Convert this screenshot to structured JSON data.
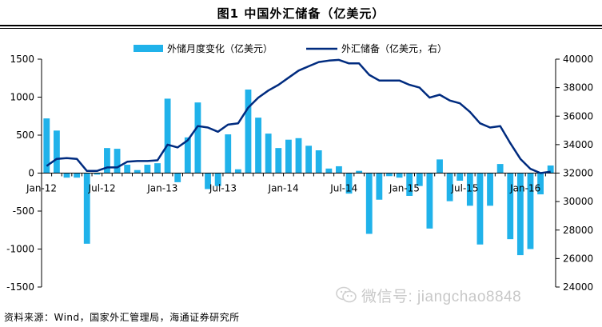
{
  "figure": {
    "title": "图1   中国外汇储备（亿美元）",
    "source": "资料来源：Wind，国家外汇管理局，海通证券研究所",
    "watermark": "微信号: jiangchao8848"
  },
  "chart_data": {
    "type": "bar+line",
    "categories": [
      "Jan-12",
      "Feb-12",
      "Mar-12",
      "Apr-12",
      "May-12",
      "Jun-12",
      "Jul-12",
      "Aug-12",
      "Sep-12",
      "Oct-12",
      "Nov-12",
      "Dec-12",
      "Jan-13",
      "Feb-13",
      "Mar-13",
      "Apr-13",
      "May-13",
      "Jun-13",
      "Jul-13",
      "Aug-13",
      "Sep-13",
      "Oct-13",
      "Nov-13",
      "Dec-13",
      "Jan-14",
      "Feb-14",
      "Mar-14",
      "Apr-14",
      "May-14",
      "Jun-14",
      "Jul-14",
      "Aug-14",
      "Sep-14",
      "Oct-14",
      "Nov-14",
      "Dec-14",
      "Jan-15",
      "Feb-15",
      "Mar-15",
      "Apr-15",
      "May-15",
      "Jun-15",
      "Jul-15",
      "Aug-15",
      "Sep-15",
      "Oct-15",
      "Nov-15",
      "Dec-15",
      "Jan-16",
      "Feb-16",
      "Mar-16"
    ],
    "x_tick_labels": [
      "Jan-12",
      "Jul-12",
      "Jan-13",
      "Jul-13",
      "Jan-14",
      "Jul-14",
      "Jan-15",
      "Jul-15",
      "Jan-16"
    ],
    "series": [
      {
        "name": "外储月度变化（亿美元）",
        "kind": "bar",
        "axis": "left",
        "color": "#20b2ea",
        "values": [
          720,
          560,
          -60,
          -60,
          -930,
          -20,
          330,
          320,
          110,
          40,
          110,
          130,
          980,
          -120,
          470,
          930,
          -210,
          -170,
          510,
          50,
          1100,
          730,
          520,
          330,
          440,
          460,
          360,
          300,
          60,
          90,
          -270,
          30,
          -800,
          -350,
          -40,
          -60,
          -300,
          -170,
          -730,
          180,
          -370,
          -100,
          -430,
          -940,
          -430,
          120,
          -870,
          -1080,
          -1000,
          -280,
          100
        ]
      },
      {
        "name": "外汇储备（亿美元，右）",
        "kind": "line",
        "axis": "right",
        "color": "#002b7f",
        "values": [
          32500,
          33000,
          33050,
          33000,
          32150,
          32150,
          32400,
          32400,
          32800,
          32850,
          32850,
          32900,
          34000,
          33800,
          34300,
          35300,
          35200,
          34900,
          35400,
          35500,
          36600,
          37300,
          37800,
          38200,
          38700,
          39200,
          39500,
          39800,
          39900,
          39950,
          39700,
          39700,
          38900,
          38500,
          38500,
          38500,
          38200,
          38000,
          37300,
          37500,
          37100,
          36900,
          36300,
          35500,
          35200,
          35300,
          34100,
          33000,
          32300,
          32000,
          32100
        ]
      }
    ],
    "left_axis": {
      "min": -1500,
      "max": 1500,
      "ticks": [
        -1500,
        -1000,
        -500,
        0,
        500,
        1000,
        1500
      ]
    },
    "right_axis": {
      "min": 24000,
      "max": 40000,
      "ticks": [
        24000,
        26000,
        28000,
        30000,
        32000,
        34000,
        36000,
        38000,
        40000
      ]
    },
    "legend_position": "top-center",
    "grid": false
  }
}
